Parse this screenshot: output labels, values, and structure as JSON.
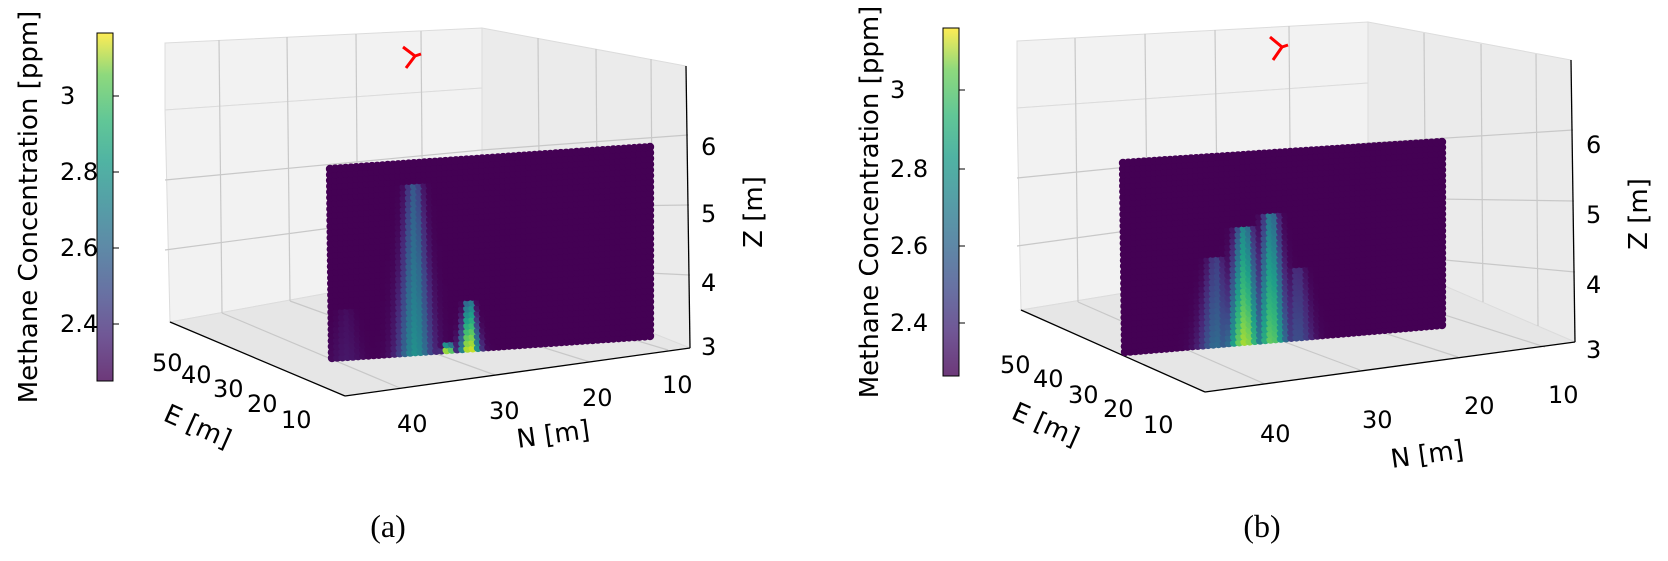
{
  "chart_data": [
    {
      "id": "a",
      "type": "scatter-3d",
      "caption": "(a)",
      "colorbar": {
        "label": "Methane Concentration [ppm]",
        "ticks": [
          2.4,
          2.6,
          2.8,
          3.0
        ],
        "range": [
          2.22,
          3.18
        ],
        "colormap": "viridis"
      },
      "axes": {
        "E": {
          "label": "E [m]",
          "ticks": [
            50,
            40,
            30,
            20,
            10
          ]
        },
        "N": {
          "label": "N [m]",
          "ticks": [
            40,
            30,
            20,
            10
          ]
        },
        "Z": {
          "label": "Z [m]",
          "ticks": [
            3,
            4,
            5,
            6
          ],
          "range": [
            2.8,
            7.0
          ]
        }
      },
      "grid": true,
      "wind_marker_color": "#ff0000",
      "slice": {
        "N_range": [
          43,
          12
        ],
        "Z_range": [
          3.0,
          5.8
        ]
      },
      "plumes": [
        {
          "N": 34.8,
          "z_top": 5.5,
          "width": 1.6,
          "peak": 2.7
        },
        {
          "N": 29.5,
          "z_top": 3.7,
          "width": 0.9,
          "peak": 3.15
        },
        {
          "N": 31.6,
          "z_top": 3.15,
          "width": 0.5,
          "peak": 3.2
        },
        {
          "N": 41.5,
          "z_top": 3.7,
          "width": 1.5,
          "peak": 2.28
        }
      ]
    },
    {
      "id": "b",
      "type": "scatter-3d",
      "caption": "(b)",
      "colorbar": {
        "label": "Methane Concentration [ppm]",
        "ticks": [
          2.4,
          2.6,
          2.8,
          3.0
        ],
        "range": [
          2.22,
          3.18
        ],
        "colormap": "viridis"
      },
      "axes": {
        "E": {
          "label": "E [m]",
          "ticks": [
            50,
            40,
            30,
            20,
            10
          ]
        },
        "N": {
          "label": "N [m]",
          "ticks": [
            40,
            30,
            20,
            10
          ]
        },
        "Z": {
          "label": "Z [m]",
          "ticks": [
            3,
            4,
            5,
            6
          ],
          "range": [
            2.8,
            7.0
          ]
        }
      },
      "grid": true,
      "wind_marker_color": "#ff0000",
      "slice": {
        "N_range": [
          43,
          12
        ],
        "Z_range": [
          3.0,
          5.8
        ]
      },
      "plumes": [
        {
          "N": 31.2,
          "z_top": 4.7,
          "width": 1.7,
          "peak": 3.05
        },
        {
          "N": 28.6,
          "z_top": 4.9,
          "width": 1.5,
          "peak": 2.95
        },
        {
          "N": 34.0,
          "z_top": 4.3,
          "width": 1.6,
          "peak": 2.55
        },
        {
          "N": 26.0,
          "z_top": 4.1,
          "width": 1.4,
          "peak": 2.45
        }
      ]
    }
  ]
}
